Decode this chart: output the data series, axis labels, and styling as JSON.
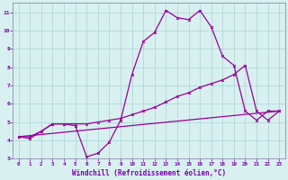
{
  "title": "",
  "xlabel": "Windchill (Refroidissement éolien,°C)",
  "ylabel": "",
  "background_color": "#d8f0f0",
  "plot_bg_color": "#d8f0f0",
  "line_color": "#990099",
  "grid_color": "#b0d8d8",
  "border_color": "#9999bb",
  "xlim": [
    -0.5,
    23.5
  ],
  "ylim": [
    3,
    11.5
  ],
  "xticks": [
    0,
    1,
    2,
    3,
    4,
    5,
    6,
    7,
    8,
    9,
    10,
    11,
    12,
    13,
    14,
    15,
    16,
    17,
    18,
    19,
    20,
    21,
    22,
    23
  ],
  "yticks": [
    3,
    4,
    5,
    6,
    7,
    8,
    9,
    10,
    11
  ],
  "series1_x": [
    0,
    1,
    2,
    3,
    4,
    5,
    6,
    7,
    8,
    9,
    10,
    11,
    12,
    13,
    14,
    15,
    16,
    17,
    18,
    19,
    20,
    21,
    22,
    23
  ],
  "series1_y": [
    4.2,
    4.1,
    4.5,
    4.9,
    4.9,
    4.8,
    3.1,
    3.3,
    3.9,
    5.1,
    7.6,
    9.4,
    9.9,
    11.1,
    10.7,
    10.6,
    11.1,
    10.2,
    8.6,
    8.1,
    5.6,
    5.1,
    5.6,
    5.6
  ],
  "series2_x": [
    0,
    1,
    2,
    3,
    4,
    5,
    6,
    7,
    8,
    9,
    10,
    11,
    12,
    13,
    14,
    15,
    16,
    17,
    18,
    19,
    20,
    21,
    22,
    23
  ],
  "series2_y": [
    4.2,
    4.2,
    4.5,
    4.9,
    4.9,
    4.9,
    4.9,
    5.0,
    5.1,
    5.2,
    5.4,
    5.6,
    5.8,
    6.1,
    6.4,
    6.6,
    6.9,
    7.1,
    7.3,
    7.6,
    8.1,
    5.6,
    5.1,
    5.6
  ],
  "series3_x": [
    0,
    23
  ],
  "series3_y": [
    4.2,
    5.6
  ],
  "tick_color": "#7700aa",
  "xlabel_color": "#7700aa",
  "tick_fontsize": 4.2,
  "xlabel_fontsize": 5.5
}
